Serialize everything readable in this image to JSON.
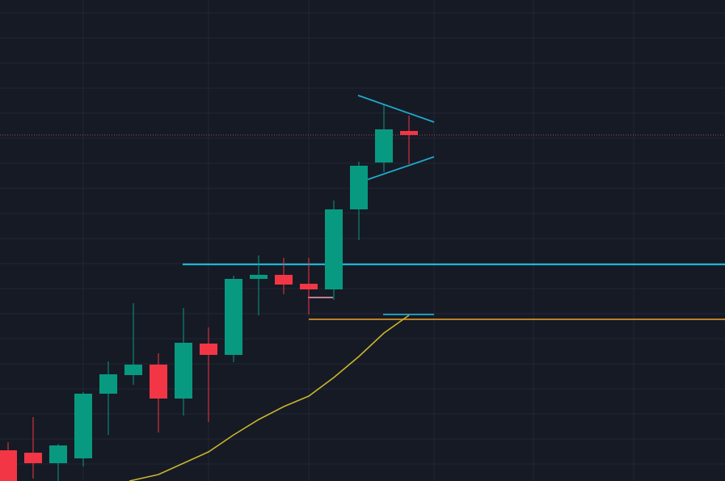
{
  "colors": {
    "background": "#161a25",
    "grid": "#232733",
    "bullish": "#089981",
    "bearish": "#f23645",
    "moving_average": "#c9b52b",
    "trendline": "#1fa9c9",
    "resistance_line": "#1fb5d6",
    "support_line": "#f0a12a",
    "current_price_marker": "#9a4a55",
    "pink_marker": "#f5a3b8"
  },
  "chart_data": {
    "type": "candlestick",
    "title": "",
    "xlabel": "",
    "ylabel": "",
    "ylim": [
      0,
      595
    ],
    "grid": true,
    "candles": [
      {
        "x": 10,
        "open": 38,
        "close": 0,
        "high": 48,
        "low": 0
      },
      {
        "x": 41,
        "open": 35,
        "close": 22,
        "high": 79,
        "low": 3
      },
      {
        "x": 72,
        "open": 22,
        "close": 44,
        "high": 46,
        "low": 0
      },
      {
        "x": 103,
        "open": 28,
        "close": 108,
        "high": 110,
        "low": 18
      },
      {
        "x": 134,
        "open": 108,
        "close": 132,
        "high": 148,
        "low": 57
      },
      {
        "x": 165,
        "open": 131,
        "close": 144,
        "high": 220,
        "low": 119
      },
      {
        "x": 196,
        "open": 144,
        "close": 102,
        "high": 158,
        "low": 60
      },
      {
        "x": 227,
        "open": 102,
        "close": 171,
        "high": 214,
        "low": 81
      },
      {
        "x": 258,
        "open": 170,
        "close": 156,
        "high": 190,
        "low": 73
      },
      {
        "x": 289,
        "open": 156,
        "close": 250,
        "high": 254,
        "low": 147
      },
      {
        "x": 320,
        "open": 250,
        "close": 255,
        "high": 279,
        "low": 205
      },
      {
        "x": 351,
        "open": 255,
        "close": 243,
        "high": 276,
        "low": 231
      },
      {
        "x": 382,
        "open": 244,
        "close": 237,
        "high": 276,
        "low": 206
      },
      {
        "x": 413,
        "open": 237,
        "close": 336,
        "high": 347,
        "low": 224
      },
      {
        "x": 444,
        "open": 336,
        "close": 390,
        "high": 395,
        "low": 298
      },
      {
        "x": 475,
        "open": 394,
        "close": 435,
        "high": 465,
        "low": 382
      },
      {
        "x": 506,
        "open": 433,
        "close": 428,
        "high": 452,
        "low": 392
      }
    ],
    "moving_average": [
      [
        160,
        0
      ],
      [
        196,
        8
      ],
      [
        227,
        22
      ],
      [
        258,
        36
      ],
      [
        289,
        57
      ],
      [
        320,
        76
      ],
      [
        351,
        92
      ],
      [
        382,
        105
      ],
      [
        413,
        128
      ],
      [
        444,
        154
      ],
      [
        475,
        183
      ],
      [
        506,
        205
      ]
    ],
    "horizontal_lines": [
      {
        "name": "resistance_line",
        "y": 268,
        "x_start": 226
      },
      {
        "name": "support_line",
        "y": 200,
        "x_start": 382
      },
      {
        "name": "current_price_marker",
        "y": 428,
        "x_start": 0,
        "dashed": true
      }
    ],
    "trendlines": [
      {
        "name": "upper_trendline",
        "from": [
          443,
          477
        ],
        "to": [
          537,
          444
        ]
      },
      {
        "name": "lower_trendline",
        "from": [
          455,
          373
        ],
        "to": [
          537,
          401
        ]
      },
      {
        "name": "short_segment",
        "from": [
          474,
          206
        ],
        "to": [
          537,
          206
        ]
      }
    ],
    "markers": [
      {
        "name": "pink_marker",
        "y": 227,
        "x_start": 381,
        "x_end": 412
      }
    ]
  }
}
